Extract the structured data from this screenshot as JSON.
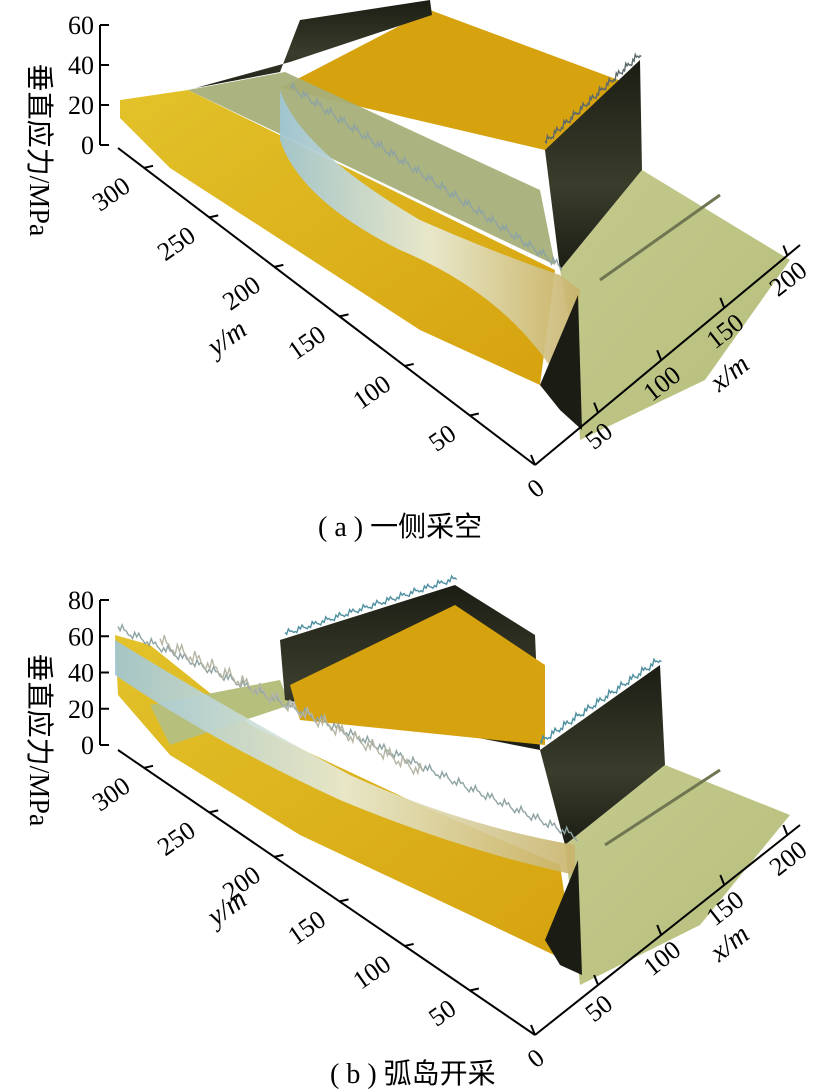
{
  "figure": {
    "caption_a": "( a ) 一侧采空",
    "caption_b": "( b ) 弧岛开采"
  },
  "colors": {
    "surface_base": "#b7bf7c",
    "surface_gold": "#d6a20e",
    "surface_yellow": "#e2c22a",
    "peak_dark": "#1b1d14",
    "peak_light": "#e9ecd8",
    "peak_blue": "#9fc6d6",
    "axis": "#000000"
  },
  "chart_data": [
    {
      "type": "surface3d",
      "panel": "a",
      "zlabel": "垂直应力/MPa",
      "ylabel": "y/m",
      "xlabel": "x/m",
      "zticks": [
        "0",
        "20",
        "40",
        "60"
      ],
      "yticks": [
        "50",
        "100",
        "150",
        "200",
        "250",
        "300"
      ],
      "xticks": [
        "0",
        "50",
        "100",
        "150",
        "200"
      ],
      "zlim": [
        0,
        60
      ],
      "ylim": [
        0,
        320
      ],
      "xlim": [
        0,
        210
      ],
      "features": {
        "peak_stress_mpa": 58,
        "base_stress_mpa": 18,
        "goaf_stress_mpa": 0
      }
    },
    {
      "type": "surface3d",
      "panel": "b",
      "zlabel": "垂直应力/MPa",
      "ylabel": "y/m",
      "xlabel": "x/m",
      "zticks": [
        "0",
        "20",
        "40",
        "60",
        "80"
      ],
      "yticks": [
        "50",
        "100",
        "150",
        "200",
        "250",
        "300"
      ],
      "xticks": [
        "0",
        "50",
        "100",
        "150",
        "200"
      ],
      "zlim": [
        0,
        80
      ],
      "ylim": [
        0,
        320
      ],
      "xlim": [
        0,
        210
      ],
      "features": {
        "peak_stress_mpa": 75,
        "base_stress_mpa": 18,
        "goaf_stress_mpa": 0
      }
    }
  ]
}
